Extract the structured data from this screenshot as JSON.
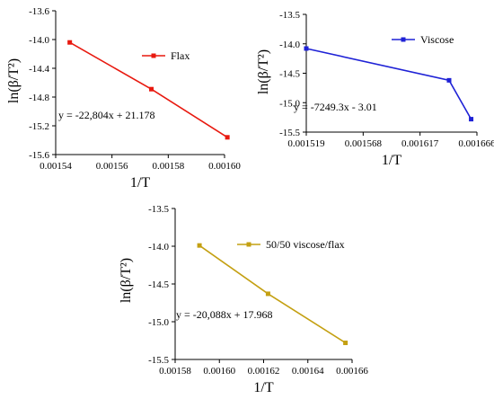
{
  "chart_data": [
    {
      "type": "line",
      "series": [
        {
          "name": "Flax",
          "color": "#e8190f",
          "x": [
            0.001545,
            0.001574,
            0.001601
          ],
          "y": [
            -14.04,
            -14.69,
            -15.36
          ]
        }
      ],
      "equation": "y = -22,804x + 21.178",
      "xlabel": "1/T",
      "ylabel": "ln(β/T²)",
      "xlim": [
        0.00154,
        0.0016
      ],
      "ylim": [
        -15.6,
        -13.6
      ],
      "xticks": [
        "0.00154",
        "0.00156",
        "0.00158",
        "0.00160"
      ],
      "yticks": [
        "-13.6",
        "-14.0",
        "-14.4",
        "-14.8",
        "-15.2",
        "-15.6"
      ],
      "legend_position": "top-right"
    },
    {
      "type": "line",
      "series": [
        {
          "name": "Viscose",
          "color": "#1f22d6",
          "x": [
            0.001519,
            0.001642,
            0.001661
          ],
          "y": [
            -14.08,
            -14.62,
            -15.28
          ]
        }
      ],
      "equation": "y = -7249.3x - 3.01",
      "xlabel": "1/T",
      "ylabel": "ln(β/T²)",
      "xlim": [
        0.001519,
        0.001666
      ],
      "ylim": [
        -15.5,
        -13.5
      ],
      "xticks": [
        "0.001519",
        "0.001568",
        "0.001617",
        "0.001666"
      ],
      "yticks": [
        "-13.5",
        "-14.0",
        "-14.5",
        "-15.0",
        "-15.5"
      ],
      "legend_position": "top-right"
    },
    {
      "type": "line",
      "series": [
        {
          "name": "50/50 viscose/flax",
          "color": "#c4a012",
          "x": [
            0.001591,
            0.001622,
            0.001657
          ],
          "y": [
            -13.99,
            -14.63,
            -15.28
          ]
        }
      ],
      "equation": "y = -20,088x + 17.968",
      "xlabel": "1/T",
      "ylabel": "ln(β/T²)",
      "xlim": [
        0.00158,
        0.00166
      ],
      "ylim": [
        -15.5,
        -13.5
      ],
      "xticks": [
        "0.00158",
        "0.00160",
        "0.00162",
        "0.00164",
        "0.00166"
      ],
      "yticks": [
        "-13.5",
        "-14.0",
        "-14.5",
        "-15.0",
        "-15.5"
      ],
      "legend_position": "top-right"
    }
  ]
}
